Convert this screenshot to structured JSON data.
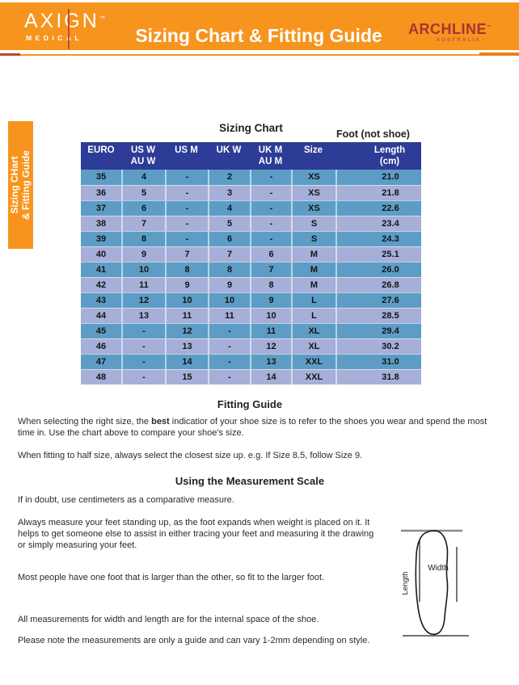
{
  "header": {
    "logo_left": {
      "name": "AXIGN",
      "tm": "™",
      "subtitle": "MEDICAL"
    },
    "title": "Sizing Chart & Fitting Guide",
    "logo_right": {
      "name": "ARCHLINE",
      "tm": "™",
      "subtitle": "AUSTRALIA"
    }
  },
  "side_tab": {
    "label_line1": "Sizing CHart",
    "label_line2": "& Fitting Guide"
  },
  "chart_data": {
    "type": "table",
    "title": "Sizing Chart",
    "note": "Foot (not shoe)",
    "columns": [
      {
        "line1": "EURO",
        "line2": ""
      },
      {
        "line1": "US W",
        "line2": "AU W"
      },
      {
        "line1": "US M",
        "line2": ""
      },
      {
        "line1": "UK W",
        "line2": ""
      },
      {
        "line1": "UK M",
        "line2": "AU M"
      },
      {
        "line1": "Size",
        "line2": ""
      },
      {
        "line1": "Length",
        "line2": "(cm)"
      }
    ],
    "rows": [
      [
        "35",
        "4",
        "-",
        "2",
        "-",
        "XS",
        "21.0"
      ],
      [
        "36",
        "5",
        "-",
        "3",
        "-",
        "XS",
        "21.8"
      ],
      [
        "37",
        "6",
        "-",
        "4",
        "-",
        "XS",
        "22.6"
      ],
      [
        "38",
        "7",
        "-",
        "5",
        "-",
        "S",
        "23.4"
      ],
      [
        "39",
        "8",
        "-",
        "6",
        "-",
        "S",
        "24.3"
      ],
      [
        "40",
        "9",
        "7",
        "7",
        "6",
        "M",
        "25.1"
      ],
      [
        "41",
        "10",
        "8",
        "8",
        "7",
        "M",
        "26.0"
      ],
      [
        "42",
        "11",
        "9",
        "9",
        "8",
        "M",
        "26.8"
      ],
      [
        "43",
        "12",
        "10",
        "10",
        "9",
        "L",
        "27.6"
      ],
      [
        "44",
        "13",
        "11",
        "11",
        "10",
        "L",
        "28.5"
      ],
      [
        "45",
        "-",
        "12",
        "-",
        "11",
        "XL",
        "29.4"
      ],
      [
        "46",
        "-",
        "13",
        "-",
        "12",
        "XL",
        "30.2"
      ],
      [
        "47",
        "-",
        "14",
        "-",
        "13",
        "XXL",
        "31.0"
      ],
      [
        "48",
        "-",
        "15",
        "-",
        "14",
        "XXL",
        "31.8"
      ]
    ]
  },
  "fitting_guide": {
    "heading": "Fitting Guide",
    "p1_before": "When selecting the right size, the ",
    "p1_bold": "best",
    "p1_after": " indicatior of your shoe size is to refer to the shoes you wear and spend the most time in. Use the chart above to compare your shoe's size.",
    "p2": "When fitting to half size, always select the closest size up. e.g. If Size 8.5, follow Size 9."
  },
  "measurement": {
    "heading": "Using the Measurement Scale",
    "p1": "If in doubt, use centimeters as a comparative measure.",
    "p2": "Always measure your feet standing up, as the foot expands when weight is placed on it. It helps to get someone else to assist in either tracing your feet and measuring it the drawing or simply measuring your feet.",
    "p3": "Most people have one foot that is larger than the other, so fit to the larger foot."
  },
  "notes": {
    "p1": "All measurements for width and length are for the internal space of the shoe.",
    "p2": "Please note the measurements are only a guide and can vary 1-2mm depending on style."
  },
  "diagram": {
    "width_label": "Width",
    "length_label": "Length"
  },
  "colors": {
    "header_orange": "#F7941E",
    "table_header_blue": "#2D3C96",
    "row_blue": "#5D9DC5",
    "row_periwinkle": "#A6AFD8",
    "accent_red": "#BA4533",
    "archline_red": "#A8342E"
  }
}
